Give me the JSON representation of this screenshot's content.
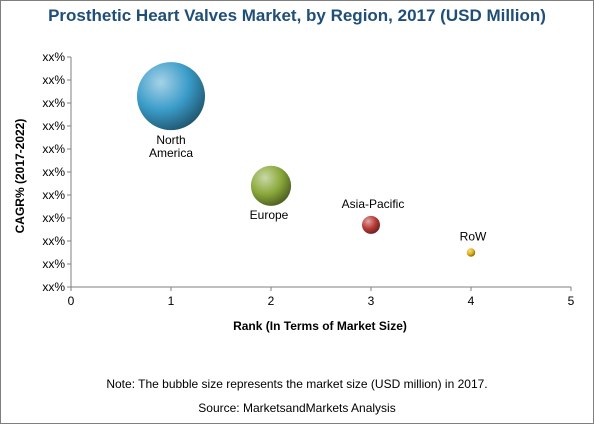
{
  "chart_data": {
    "type": "bubble",
    "title": "Prosthetic Heart Valves Market, by Region, 2017 (USD Million)",
    "xlabel": "Rank (In Terms of Market Size)",
    "ylabel": "CAGR% (2017-2022)",
    "xlim": [
      0,
      5
    ],
    "xticks": [
      "0",
      "1",
      "2",
      "3",
      "4",
      "5"
    ],
    "yticks": [
      "xx%",
      "xx%",
      "xx%",
      "xx%",
      "xx%",
      "xx%",
      "xx%",
      "xx%",
      "xx%",
      "xx%",
      "xx%"
    ],
    "ylim": [
      0,
      10
    ],
    "grid": false,
    "points": [
      {
        "label": "North America",
        "x": 1,
        "y": 8.3,
        "size": 100,
        "color": "#3a9cc9"
      },
      {
        "label": "Europe",
        "x": 2,
        "y": 4.4,
        "size": 35,
        "color": "#8aa83a"
      },
      {
        "label": "Asia-Pacific",
        "x": 3,
        "y": 2.7,
        "size": 7,
        "color": "#b83a36"
      },
      {
        "label": "RoW",
        "x": 4,
        "y": 1.5,
        "size": 1.5,
        "color": "#e3b012"
      }
    ]
  },
  "footer": {
    "note": "Note: The bubble size represents the market size (USD million) in 2017.",
    "source": "Source: MarketsandMarkets Analysis"
  }
}
